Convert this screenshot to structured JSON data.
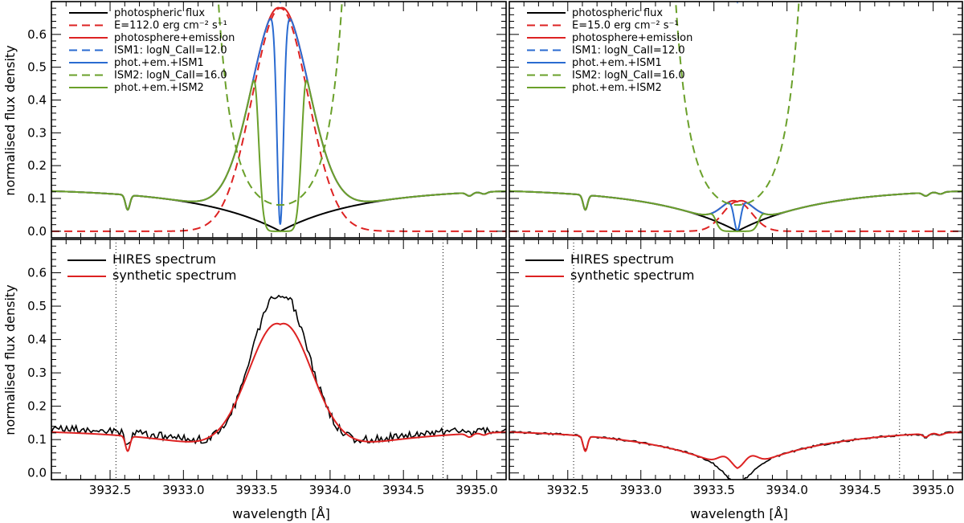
{
  "figure": {
    "xlabel": "wavelength [Å]",
    "ylabel": "normalised flux density"
  },
  "chart_data": [
    {
      "type": "line",
      "panel": "top-left",
      "xlim": [
        3932.1,
        3935.2
      ],
      "ylim": [
        -0.02,
        0.7
      ],
      "yticks": [
        0.0,
        0.1,
        0.2,
        0.3,
        0.4,
        0.5,
        0.6
      ],
      "ytick_labels": [
        "0.0",
        "0.1",
        "0.2",
        "0.3",
        "0.4",
        "0.5",
        "0.6"
      ],
      "legend_position": "top-left",
      "params": {
        "E": 0.68,
        "Eshape": "wide",
        "ism1_depth": 0.62,
        "ism2_sigma": 0.065,
        "lineCenter": 3933.66
      },
      "series": [
        {
          "name": "photospheric flux",
          "label": "photospheric flux",
          "color": "#000000",
          "dash": "",
          "kind": "phot"
        },
        {
          "name": "emission",
          "label": "E=112.0 erg cm⁻² s⁻¹",
          "color": "#dd2222",
          "dash": "10,6",
          "kind": "em"
        },
        {
          "name": "photosphere+emission",
          "label": "photosphere+emission",
          "color": "#dd2222",
          "dash": "",
          "kind": "phot_em"
        },
        {
          "name": "ISM1 absorption",
          "label": "ISM1: logN_CaII=12.0",
          "color": "#2a6bd1",
          "dash": "10,6",
          "kind": "ism1"
        },
        {
          "name": "phot.+em.+ISM1",
          "label": "phot.+em.+ISM1",
          "color": "#2a6bd1",
          "dash": "",
          "kind": "tot1"
        },
        {
          "name": "ISM2 absorption",
          "label": "ISM2: logN_CaII=16.0",
          "color": "#6aa02a",
          "dash": "10,6",
          "kind": "ism2"
        },
        {
          "name": "phot.+em.+ISM2",
          "label": "phot.+em.+ISM2",
          "color": "#6aa02a",
          "dash": "",
          "kind": "tot2"
        }
      ]
    },
    {
      "type": "line",
      "panel": "top-right",
      "xlim": [
        3932.1,
        3935.2
      ],
      "ylim": [
        -0.02,
        0.7
      ],
      "legend_position": "top-left",
      "params": {
        "E": 0.09,
        "Eshape": "narrow",
        "ism1_depth": 0.62,
        "ism2_sigma": 0.065,
        "lineCenter": 3933.66
      },
      "series": [
        {
          "name": "photospheric flux",
          "label": "photospheric flux",
          "color": "#000000",
          "dash": "",
          "kind": "phot"
        },
        {
          "name": "emission",
          "label": "E=15.0 erg cm⁻² s⁻¹",
          "color": "#dd2222",
          "dash": "10,6",
          "kind": "em"
        },
        {
          "name": "photosphere+emission",
          "label": "photosphere+emission",
          "color": "#dd2222",
          "dash": "",
          "kind": "phot_em"
        },
        {
          "name": "ISM1 absorption",
          "label": "ISM1: logN_CaII=12.0",
          "color": "#2a6bd1",
          "dash": "10,6",
          "kind": "ism1"
        },
        {
          "name": "phot.+em.+ISM1",
          "label": "phot.+em.+ISM1",
          "color": "#2a6bd1",
          "dash": "",
          "kind": "tot1"
        },
        {
          "name": "ISM2 absorption",
          "label": "ISM2: logN_CaII=16.0",
          "color": "#6aa02a",
          "dash": "10,6",
          "kind": "ism2"
        },
        {
          "name": "phot.+em.+ISM2",
          "label": "phot.+em.+ISM2",
          "color": "#6aa02a",
          "dash": "",
          "kind": "tot2"
        }
      ]
    },
    {
      "type": "line",
      "panel": "bottom-left",
      "xlim": [
        3932.1,
        3935.2
      ],
      "ylim": [
        -0.02,
        0.7
      ],
      "xticks": [
        3932.5,
        3933.0,
        3933.5,
        3934.0,
        3934.5,
        3935.0
      ],
      "xtick_labels": [
        "3932.5",
        "3933.0",
        "3933.5",
        "3934.0",
        "3934.5",
        "3935.0"
      ],
      "yticks": [
        0.0,
        0.1,
        0.2,
        0.3,
        0.4,
        0.5,
        0.6
      ],
      "ytick_labels": [
        "0.0",
        "0.1",
        "0.2",
        "0.3",
        "0.4",
        "0.5",
        "0.6"
      ],
      "vlines": [
        3932.54,
        3934.77
      ],
      "legend_position": "top-left",
      "params": {
        "E": 0.445,
        "Eshape": "wide",
        "noise": 0.012,
        "dip": 0.0
      },
      "series": [
        {
          "name": "HIRES spectrum",
          "label": "HIRES spectrum",
          "color": "#000000",
          "kind": "obs"
        },
        {
          "name": "synthetic spectrum",
          "label": "synthetic spectrum",
          "color": "#dd2222",
          "kind": "syn"
        }
      ]
    },
    {
      "type": "line",
      "panel": "bottom-right",
      "xlim": [
        3932.1,
        3935.2
      ],
      "ylim": [
        -0.02,
        0.7
      ],
      "xticks": [
        3932.5,
        3933.0,
        3933.5,
        3934.0,
        3934.5,
        3935.0
      ],
      "xtick_labels": [
        "3932.5",
        "3933.0",
        "3933.5",
        "3934.0",
        "3934.5",
        "3935.0"
      ],
      "vlines": [
        3932.54,
        3934.77
      ],
      "legend_position": "top-left",
      "params": {
        "E": 0.09,
        "Eshape": "narrow",
        "noise": 0.003,
        "dip": 0.035
      },
      "series": [
        {
          "name": "HIRES spectrum",
          "label": "HIRES spectrum",
          "color": "#000000",
          "kind": "obs"
        },
        {
          "name": "synthetic spectrum",
          "label": "synthetic spectrum",
          "color": "#dd2222",
          "kind": "syn"
        }
      ]
    }
  ]
}
